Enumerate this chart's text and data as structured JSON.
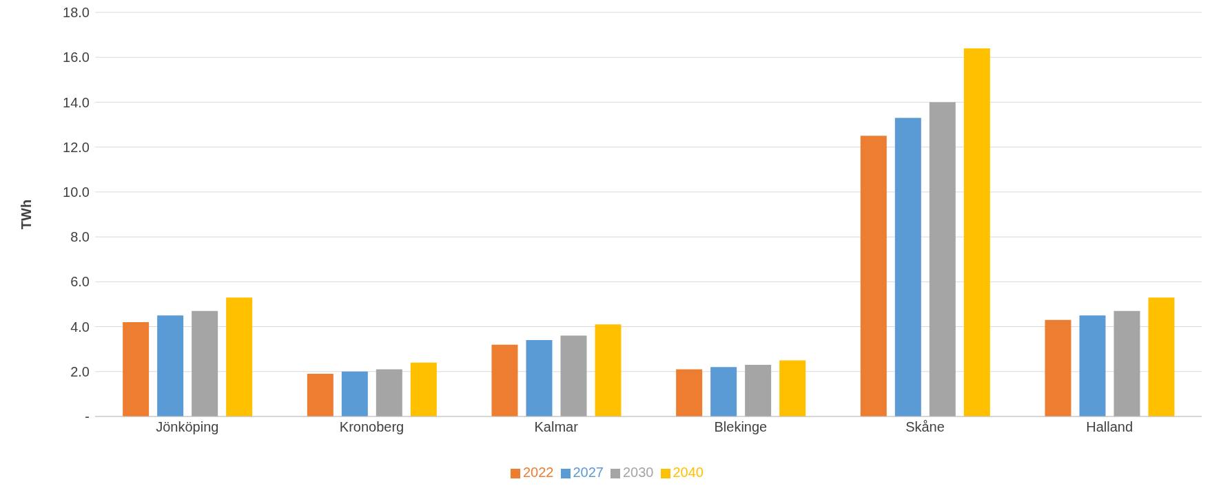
{
  "chart_data": {
    "type": "bar",
    "ylabel": "TWh",
    "categories": [
      "Jönköping",
      "Kronoberg",
      "Kalmar",
      "Blekinge",
      "Skåne",
      "Halland"
    ],
    "series": [
      {
        "name": "2022",
        "color": "#ed7d31",
        "values": [
          4.2,
          1.9,
          3.2,
          2.1,
          12.5,
          4.3
        ]
      },
      {
        "name": "2027",
        "color": "#5b9bd5",
        "values": [
          4.5,
          2.0,
          3.4,
          2.2,
          13.3,
          4.5
        ]
      },
      {
        "name": "2030",
        "color": "#a5a5a5",
        "values": [
          4.7,
          2.1,
          3.6,
          2.3,
          14.0,
          4.7
        ]
      },
      {
        "name": "2040",
        "color": "#ffc000",
        "values": [
          5.3,
          2.4,
          4.1,
          2.5,
          16.4,
          5.3
        ]
      }
    ],
    "ylim": [
      0,
      18
    ],
    "yticks": [
      {
        "value": 0,
        "label": "-"
      },
      {
        "value": 2,
        "label": "2.0"
      },
      {
        "value": 4,
        "label": "4.0"
      },
      {
        "value": 6,
        "label": "6.0"
      },
      {
        "value": 8,
        "label": "8.0"
      },
      {
        "value": 10,
        "label": "10.0"
      },
      {
        "value": 12,
        "label": "12.0"
      },
      {
        "value": 14,
        "label": "14.0"
      },
      {
        "value": 16,
        "label": "16.0"
      },
      {
        "value": 18,
        "label": "18.0"
      }
    ],
    "grid": "y",
    "legend": "bottom"
  }
}
